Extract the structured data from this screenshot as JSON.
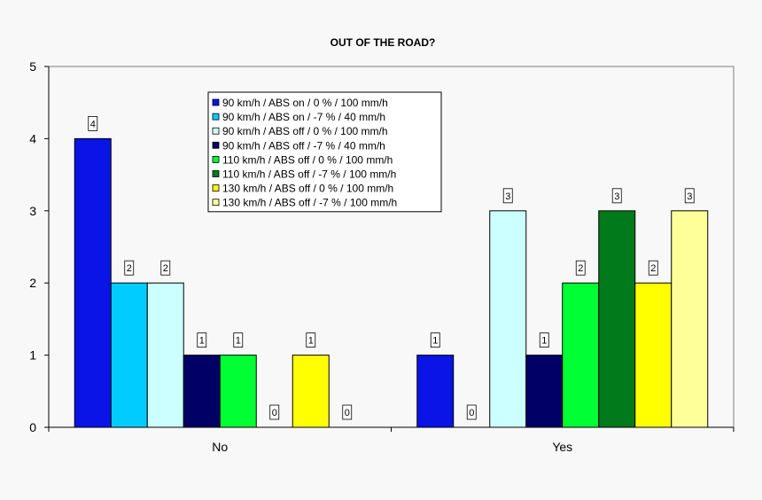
{
  "chart_data": {
    "type": "bar",
    "title": "OUT OF THE ROAD?",
    "categories": [
      "No",
      "Yes"
    ],
    "ylim": [
      0,
      5
    ],
    "yticks": [
      "0",
      "1",
      "2",
      "3",
      "4",
      "5"
    ],
    "grid": false,
    "legend_position": "top-center",
    "series": [
      {
        "name": "90 km/h / ABS on / 0 % / 100 mm/h",
        "color": "#0a14e6",
        "values": [
          4,
          1
        ]
      },
      {
        "name": "90 km/h / ABS on / -7 % / 40 mm/h",
        "color": "#00ccff",
        "values": [
          2,
          0
        ]
      },
      {
        "name": "90 km/h / ABS off / 0 % / 100 mm/h",
        "color": "#ccffff",
        "values": [
          2,
          3
        ]
      },
      {
        "name": "90 km/h / ABS off / -7 % / 40 mm/h",
        "color": "#000066",
        "values": [
          1,
          1
        ]
      },
      {
        "name": "110 km/h / ABS off / 0 % / 100 mm/h",
        "color": "#00ff33",
        "values": [
          1,
          2
        ]
      },
      {
        "name": "110 km/h / ABS off / -7 % / 100 mm/h",
        "color": "#007a1a",
        "values": [
          0,
          3
        ]
      },
      {
        "name": "130 km/h / ABS off / 0 % / 100 mm/h",
        "color": "#ffff00",
        "values": [
          1,
          2
        ]
      },
      {
        "name": "130 km/h / ABS off / -7 % / 100 mm/h",
        "color": "#ffff99",
        "values": [
          0,
          3
        ]
      }
    ]
  }
}
